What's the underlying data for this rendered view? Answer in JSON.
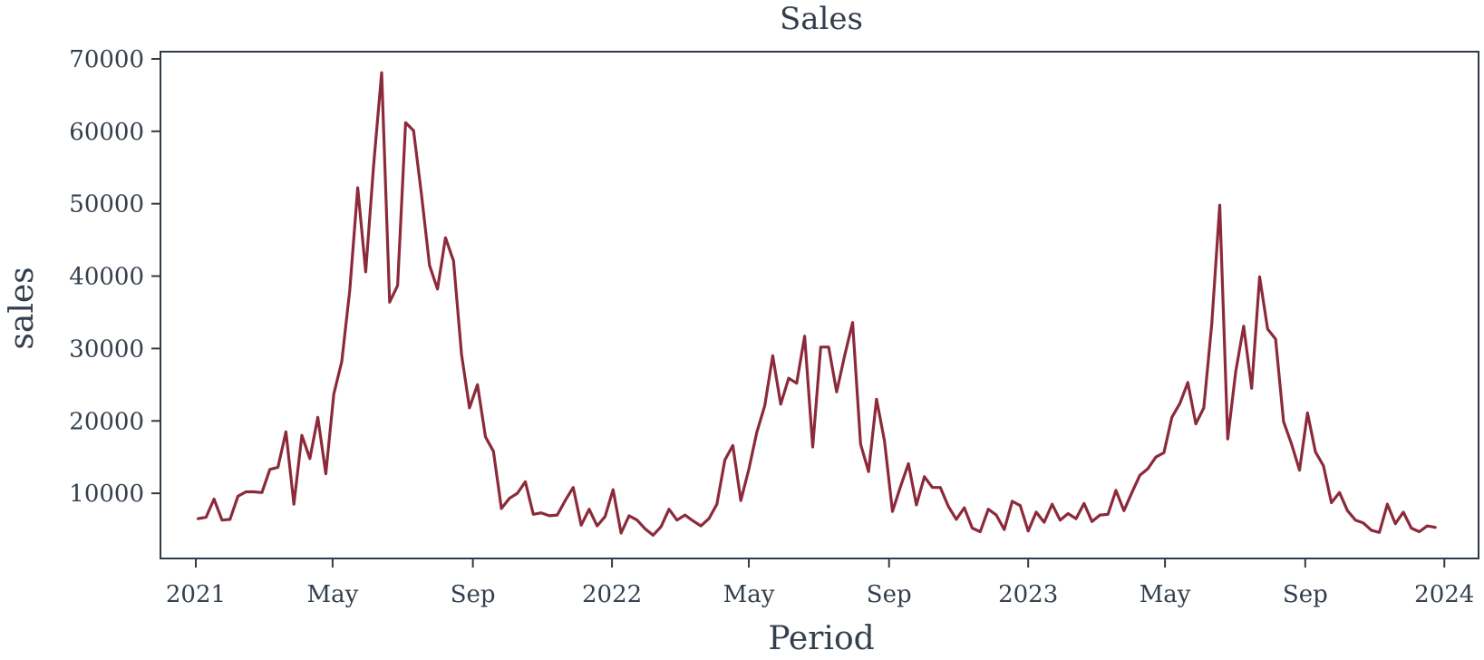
{
  "chart_data": {
    "type": "line",
    "title": "Sales",
    "xlabel": "Period",
    "ylabel": "sales",
    "x_range": [
      "2020-12-01",
      "2024-01-31"
    ],
    "ylim": [
      1000,
      71000
    ],
    "grid": false,
    "legend": "none",
    "x_ticks": [
      {
        "date": "2021-01-01",
        "label": "2021"
      },
      {
        "date": "2021-05-01",
        "label": "May"
      },
      {
        "date": "2021-09-01",
        "label": "Sep"
      },
      {
        "date": "2022-01-01",
        "label": "2022"
      },
      {
        "date": "2022-05-01",
        "label": "May"
      },
      {
        "date": "2022-09-01",
        "label": "Sep"
      },
      {
        "date": "2023-01-01",
        "label": "2023"
      },
      {
        "date": "2023-05-01",
        "label": "May"
      },
      {
        "date": "2023-09-01",
        "label": "Sep"
      },
      {
        "date": "2024-01-01",
        "label": "2024"
      }
    ],
    "y_ticks": [
      10000,
      20000,
      30000,
      40000,
      50000,
      60000,
      70000
    ],
    "series": [
      {
        "color": "#8b2a3a",
        "start": "2021-01-03",
        "frequency": "weekly",
        "values": [
          6500,
          6700,
          9200,
          6300,
          6400,
          9600,
          10200,
          10200,
          10100,
          13300,
          13600,
          18500,
          8500,
          18000,
          14800,
          20500,
          12700,
          23700,
          28200,
          38000,
          52200,
          40600,
          55400,
          68100,
          36400,
          38700,
          61200,
          60100,
          51200,
          41500,
          38200,
          45300,
          42100,
          29200,
          21800,
          25000,
          17800,
          15800,
          7900,
          9300,
          10000,
          11600,
          7100,
          7300,
          6900,
          7000,
          9000,
          10800,
          5600,
          7800,
          5500,
          6800,
          10500,
          4500,
          6900,
          6300,
          5100,
          4200,
          5400,
          7800,
          6300,
          7000,
          6200,
          5500,
          6500,
          8500,
          14600,
          16600,
          9000,
          13300,
          18400,
          22100,
          29000,
          22300,
          25900,
          25200,
          31700,
          16400,
          30200,
          30200,
          24000,
          29000,
          33600,
          16800,
          13000,
          23000,
          17200,
          7500,
          10900,
          14100,
          8400,
          12300,
          10800,
          10800,
          8200,
          6400,
          8000,
          5200,
          4700,
          7800,
          7000,
          5000,
          8900,
          8300,
          4800,
          7400,
          6000,
          8500,
          6300,
          7200,
          6500,
          8600,
          6100,
          7000,
          7100,
          10400,
          7600,
          10100,
          12500,
          13400,
          15000,
          15600,
          20500,
          22400,
          25300,
          19600,
          21800,
          33400,
          49800,
          17500,
          26800,
          33100,
          24500,
          39900,
          32700,
          31300,
          19900,
          16800,
          13200,
          21100,
          15700,
          13800,
          8700,
          10100,
          7600,
          6300,
          5900,
          4900,
          4600,
          8500,
          5800,
          7400,
          5200,
          4700,
          5500,
          5300
        ]
      }
    ]
  }
}
